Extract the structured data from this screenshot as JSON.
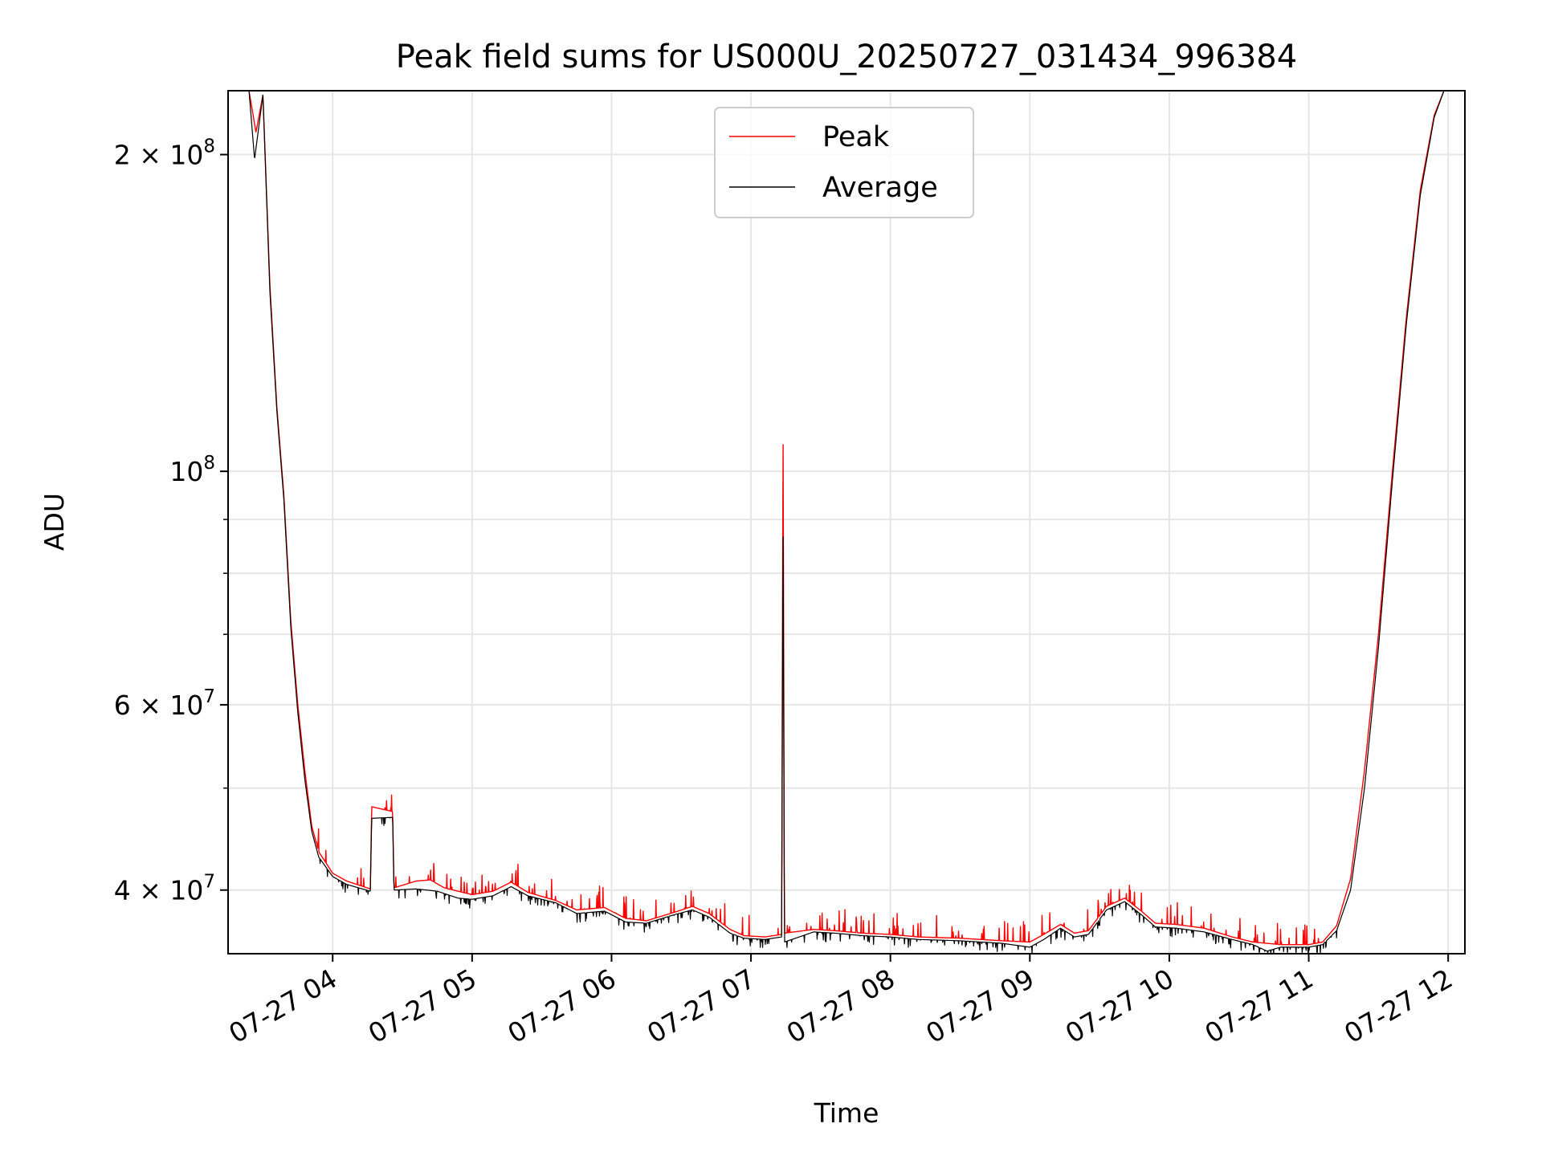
{
  "chart_data": {
    "type": "line",
    "title": "Peak field sums for US000U_20250727_031434_996384",
    "xlabel": "Time",
    "ylabel": "ADU",
    "yscale": "log",
    "grid": true,
    "legend_position": "top-center",
    "x_tick_labels": [
      "07-27 04",
      "07-27 05",
      "07-27 06",
      "07-27 07",
      "07-27 08",
      "07-27 09",
      "07-27 10",
      "07-27 11",
      "07-27 12"
    ],
    "x_tick_hours": [
      4,
      5,
      6,
      7,
      8,
      9,
      10,
      11,
      12
    ],
    "xlim_hours": [
      3.25,
      12.12
    ],
    "y_major_ticks": [
      {
        "value": 40000000,
        "mantissa": "4",
        "exp": "7"
      },
      {
        "value": 60000000,
        "mantissa": "6",
        "exp": "7"
      },
      {
        "value": 100000000,
        "mantissa": "",
        "exp": "8"
      },
      {
        "value": 200000000,
        "mantissa": "2",
        "exp": "8"
      }
    ],
    "y_minor_ticks": [
      50000000,
      70000000,
      80000000,
      90000000
    ],
    "ylim": [
      34800000,
      230000000
    ],
    "series": [
      {
        "name": "Peak",
        "color": "#ff0000",
        "points": [
          {
            "t": 3.25,
            "v": 230000000
          },
          {
            "t": 3.4,
            "v": 230000000
          },
          {
            "t": 3.45,
            "v": 210000000
          },
          {
            "t": 3.5,
            "v": 228000000
          },
          {
            "t": 3.55,
            "v": 150000000
          },
          {
            "t": 3.6,
            "v": 115000000
          },
          {
            "t": 3.65,
            "v": 95000000
          },
          {
            "t": 3.7,
            "v": 72000000
          },
          {
            "t": 3.75,
            "v": 60000000
          },
          {
            "t": 3.8,
            "v": 52000000
          },
          {
            "t": 3.85,
            "v": 46000000
          },
          {
            "t": 3.9,
            "v": 43500000
          },
          {
            "t": 4.0,
            "v": 41500000
          },
          {
            "t": 4.1,
            "v": 40800000
          },
          {
            "t": 4.27,
            "v": 40100000
          },
          {
            "t": 4.28,
            "v": 48000000
          },
          {
            "t": 4.43,
            "v": 47500000
          },
          {
            "t": 4.44,
            "v": 40200000
          },
          {
            "t": 4.6,
            "v": 40800000
          },
          {
            "t": 4.7,
            "v": 40900000
          },
          {
            "t": 4.8,
            "v": 40200000
          },
          {
            "t": 5.0,
            "v": 39600000
          },
          {
            "t": 5.15,
            "v": 39900000
          },
          {
            "t": 5.28,
            "v": 40700000
          },
          {
            "t": 5.4,
            "v": 39800000
          },
          {
            "t": 5.6,
            "v": 39100000
          },
          {
            "t": 5.75,
            "v": 38300000
          },
          {
            "t": 5.95,
            "v": 38500000
          },
          {
            "t": 6.1,
            "v": 37600000
          },
          {
            "t": 6.25,
            "v": 37400000
          },
          {
            "t": 6.45,
            "v": 38100000
          },
          {
            "t": 6.58,
            "v": 38600000
          },
          {
            "t": 6.7,
            "v": 38000000
          },
          {
            "t": 6.85,
            "v": 36700000
          },
          {
            "t": 6.95,
            "v": 36200000
          },
          {
            "t": 7.1,
            "v": 36100000
          },
          {
            "t": 7.22,
            "v": 36300000
          },
          {
            "t": 7.23,
            "v": 111000000
          },
          {
            "t": 7.24,
            "v": 36400000
          },
          {
            "t": 7.45,
            "v": 36700000
          },
          {
            "t": 7.6,
            "v": 36600000
          },
          {
            "t": 7.8,
            "v": 36400000
          },
          {
            "t": 8.0,
            "v": 36300000
          },
          {
            "t": 8.2,
            "v": 36100000
          },
          {
            "t": 8.5,
            "v": 36000000
          },
          {
            "t": 8.8,
            "v": 35800000
          },
          {
            "t": 9.0,
            "v": 35700000
          },
          {
            "t": 9.1,
            "v": 36300000
          },
          {
            "t": 9.22,
            "v": 37100000
          },
          {
            "t": 9.32,
            "v": 36400000
          },
          {
            "t": 9.42,
            "v": 36600000
          },
          {
            "t": 9.55,
            "v": 38600000
          },
          {
            "t": 9.68,
            "v": 39300000
          },
          {
            "t": 9.8,
            "v": 38200000
          },
          {
            "t": 9.9,
            "v": 37200000
          },
          {
            "t": 10.05,
            "v": 37100000
          },
          {
            "t": 10.25,
            "v": 36800000
          },
          {
            "t": 10.45,
            "v": 36100000
          },
          {
            "t": 10.6,
            "v": 35700000
          },
          {
            "t": 10.8,
            "v": 35500000
          },
          {
            "t": 11.0,
            "v": 35500000
          },
          {
            "t": 11.1,
            "v": 35700000
          },
          {
            "t": 11.2,
            "v": 37000000
          },
          {
            "t": 11.3,
            "v": 41000000
          },
          {
            "t": 11.4,
            "v": 52000000
          },
          {
            "t": 11.5,
            "v": 70000000
          },
          {
            "t": 11.6,
            "v": 100000000
          },
          {
            "t": 11.7,
            "v": 140000000
          },
          {
            "t": 11.8,
            "v": 185000000
          },
          {
            "t": 11.9,
            "v": 218000000
          },
          {
            "t": 11.97,
            "v": 230000000
          },
          {
            "t": 12.12,
            "v": 230000000
          }
        ]
      },
      {
        "name": "Average",
        "color": "#000000",
        "points": [
          {
            "t": 3.25,
            "v": 230000000
          },
          {
            "t": 3.4,
            "v": 230000000
          },
          {
            "t": 3.44,
            "v": 198000000
          },
          {
            "t": 3.5,
            "v": 228000000
          },
          {
            "t": 3.55,
            "v": 148000000
          },
          {
            "t": 3.6,
            "v": 114000000
          },
          {
            "t": 3.65,
            "v": 94000000
          },
          {
            "t": 3.7,
            "v": 71000000
          },
          {
            "t": 3.75,
            "v": 59000000
          },
          {
            "t": 3.8,
            "v": 51000000
          },
          {
            "t": 3.85,
            "v": 45500000
          },
          {
            "t": 3.9,
            "v": 43000000
          },
          {
            "t": 4.0,
            "v": 41200000
          },
          {
            "t": 4.1,
            "v": 40500000
          },
          {
            "t": 4.27,
            "v": 39900000
          },
          {
            "t": 4.28,
            "v": 46800000
          },
          {
            "t": 4.43,
            "v": 46900000
          },
          {
            "t": 4.44,
            "v": 40000000
          },
          {
            "t": 4.6,
            "v": 40100000
          },
          {
            "t": 4.75,
            "v": 39900000
          },
          {
            "t": 4.9,
            "v": 39300000
          },
          {
            "t": 5.0,
            "v": 39200000
          },
          {
            "t": 5.15,
            "v": 39500000
          },
          {
            "t": 5.28,
            "v": 40300000
          },
          {
            "t": 5.4,
            "v": 39500000
          },
          {
            "t": 5.6,
            "v": 38900000
          },
          {
            "t": 5.75,
            "v": 38000000
          },
          {
            "t": 5.95,
            "v": 38200000
          },
          {
            "t": 6.1,
            "v": 37300000
          },
          {
            "t": 6.25,
            "v": 37200000
          },
          {
            "t": 6.45,
            "v": 37900000
          },
          {
            "t": 6.58,
            "v": 38300000
          },
          {
            "t": 6.7,
            "v": 37700000
          },
          {
            "t": 6.85,
            "v": 36400000
          },
          {
            "t": 6.95,
            "v": 36000000
          },
          {
            "t": 7.1,
            "v": 35900000
          },
          {
            "t": 7.22,
            "v": 36100000
          },
          {
            "t": 7.23,
            "v": 90000000
          },
          {
            "t": 7.24,
            "v": 35700000
          },
          {
            "t": 7.45,
            "v": 36500000
          },
          {
            "t": 7.6,
            "v": 36400000
          },
          {
            "t": 7.8,
            "v": 36200000
          },
          {
            "t": 8.0,
            "v": 36100000
          },
          {
            "t": 8.2,
            "v": 35900000
          },
          {
            "t": 8.5,
            "v": 35800000
          },
          {
            "t": 8.8,
            "v": 35600000
          },
          {
            "t": 9.0,
            "v": 35300000
          },
          {
            "t": 9.1,
            "v": 35900000
          },
          {
            "t": 9.22,
            "v": 36800000
          },
          {
            "t": 9.32,
            "v": 36100000
          },
          {
            "t": 9.42,
            "v": 36300000
          },
          {
            "t": 9.55,
            "v": 38300000
          },
          {
            "t": 9.68,
            "v": 39000000
          },
          {
            "t": 9.8,
            "v": 37900000
          },
          {
            "t": 9.9,
            "v": 36900000
          },
          {
            "t": 10.05,
            "v": 36800000
          },
          {
            "t": 10.25,
            "v": 36500000
          },
          {
            "t": 10.45,
            "v": 35900000
          },
          {
            "t": 10.6,
            "v": 35500000
          },
          {
            "t": 10.7,
            "v": 35000000
          },
          {
            "t": 10.8,
            "v": 35300000
          },
          {
            "t": 11.0,
            "v": 35300000
          },
          {
            "t": 11.1,
            "v": 35500000
          },
          {
            "t": 11.2,
            "v": 36600000
          },
          {
            "t": 11.3,
            "v": 40000000
          },
          {
            "t": 11.4,
            "v": 50000000
          },
          {
            "t": 11.5,
            "v": 68000000
          },
          {
            "t": 11.6,
            "v": 98000000
          },
          {
            "t": 11.7,
            "v": 138000000
          },
          {
            "t": 11.8,
            "v": 183000000
          },
          {
            "t": 11.9,
            "v": 217000000
          },
          {
            "t": 11.97,
            "v": 230000000
          },
          {
            "t": 12.12,
            "v": 230000000
          }
        ]
      }
    ]
  }
}
